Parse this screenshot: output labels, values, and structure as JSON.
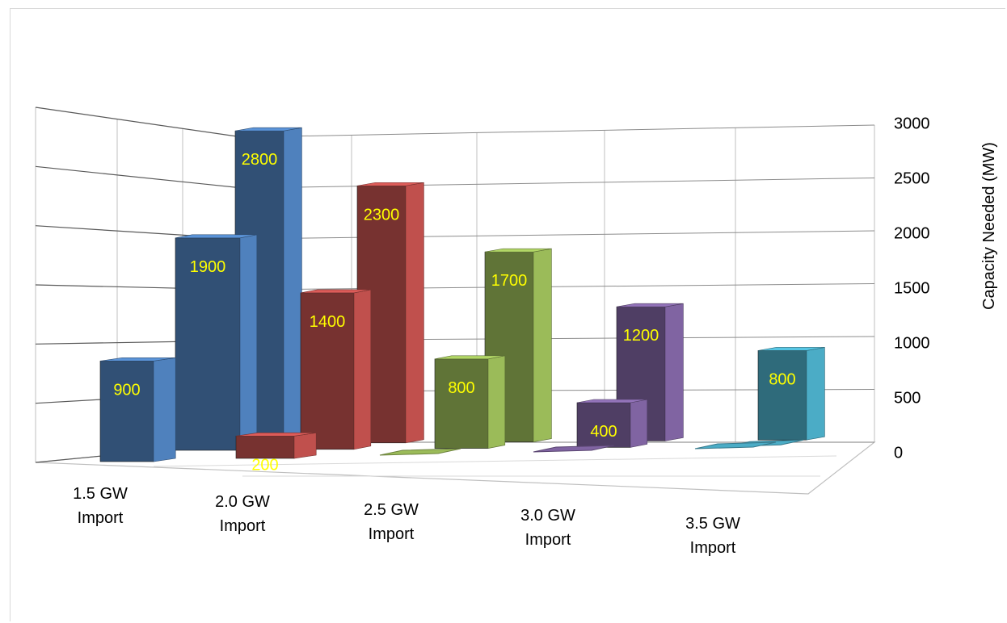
{
  "chart_data": {
    "type": "bar",
    "subtype": "3d-clustered-columns",
    "title": "",
    "xlabel": "",
    "ylabel": "Capacity Needed (MW)",
    "ylim": [
      0,
      3000
    ],
    "yticks": [
      0,
      500,
      1000,
      1500,
      2000,
      2500,
      3000
    ],
    "grid": true,
    "legend": "none",
    "categories": [
      "1.5 GW Import",
      "2.0 GW Import",
      "2.5 GW Import",
      "3.0 GW Import",
      "3.5 GW Import"
    ],
    "groups": [
      {
        "category": "1.5 GW Import",
        "color": "#4f81bd",
        "bars": [
          {
            "depth": 0,
            "value": 900,
            "label": "900"
          },
          {
            "depth": 1,
            "value": 1900,
            "label": "1900"
          },
          {
            "depth": 2,
            "value": 2800,
            "label": "2800"
          }
        ]
      },
      {
        "category": "2.0 GW Import",
        "color": "#c0504d",
        "bars": [
          {
            "depth": 0,
            "value": 200,
            "label": "200"
          },
          {
            "depth": 1,
            "value": 1400,
            "label": "1400"
          },
          {
            "depth": 2,
            "value": 2300,
            "label": "2300"
          }
        ]
      },
      {
        "category": "2.5 GW Import",
        "color": "#9bbb59",
        "bars": [
          {
            "depth": 0,
            "value": 0,
            "label": ""
          },
          {
            "depth": 1,
            "value": 800,
            "label": "800"
          },
          {
            "depth": 2,
            "value": 1700,
            "label": "1700"
          }
        ]
      },
      {
        "category": "3.0 GW Import",
        "color": "#8064a2",
        "bars": [
          {
            "depth": 0,
            "value": 0,
            "label": ""
          },
          {
            "depth": 1,
            "value": 400,
            "label": "400"
          },
          {
            "depth": 2,
            "value": 1200,
            "label": "1200"
          }
        ]
      },
      {
        "category": "3.5 GW Import",
        "color": "#4bacc6",
        "bars": [
          {
            "depth": 0,
            "value": 0,
            "label": ""
          },
          {
            "depth": 1,
            "value": 0,
            "label": ""
          },
          {
            "depth": 2,
            "value": 800,
            "label": "800"
          }
        ]
      }
    ],
    "category_labels": [
      [
        "1.5 GW",
        "Import"
      ],
      [
        "2.0 GW",
        "Import"
      ],
      [
        "2.5 GW",
        "Import"
      ],
      [
        "3.0 GW",
        "Import"
      ],
      [
        "3.5 GW",
        "Import"
      ]
    ],
    "label_color": "#ffff00"
  }
}
